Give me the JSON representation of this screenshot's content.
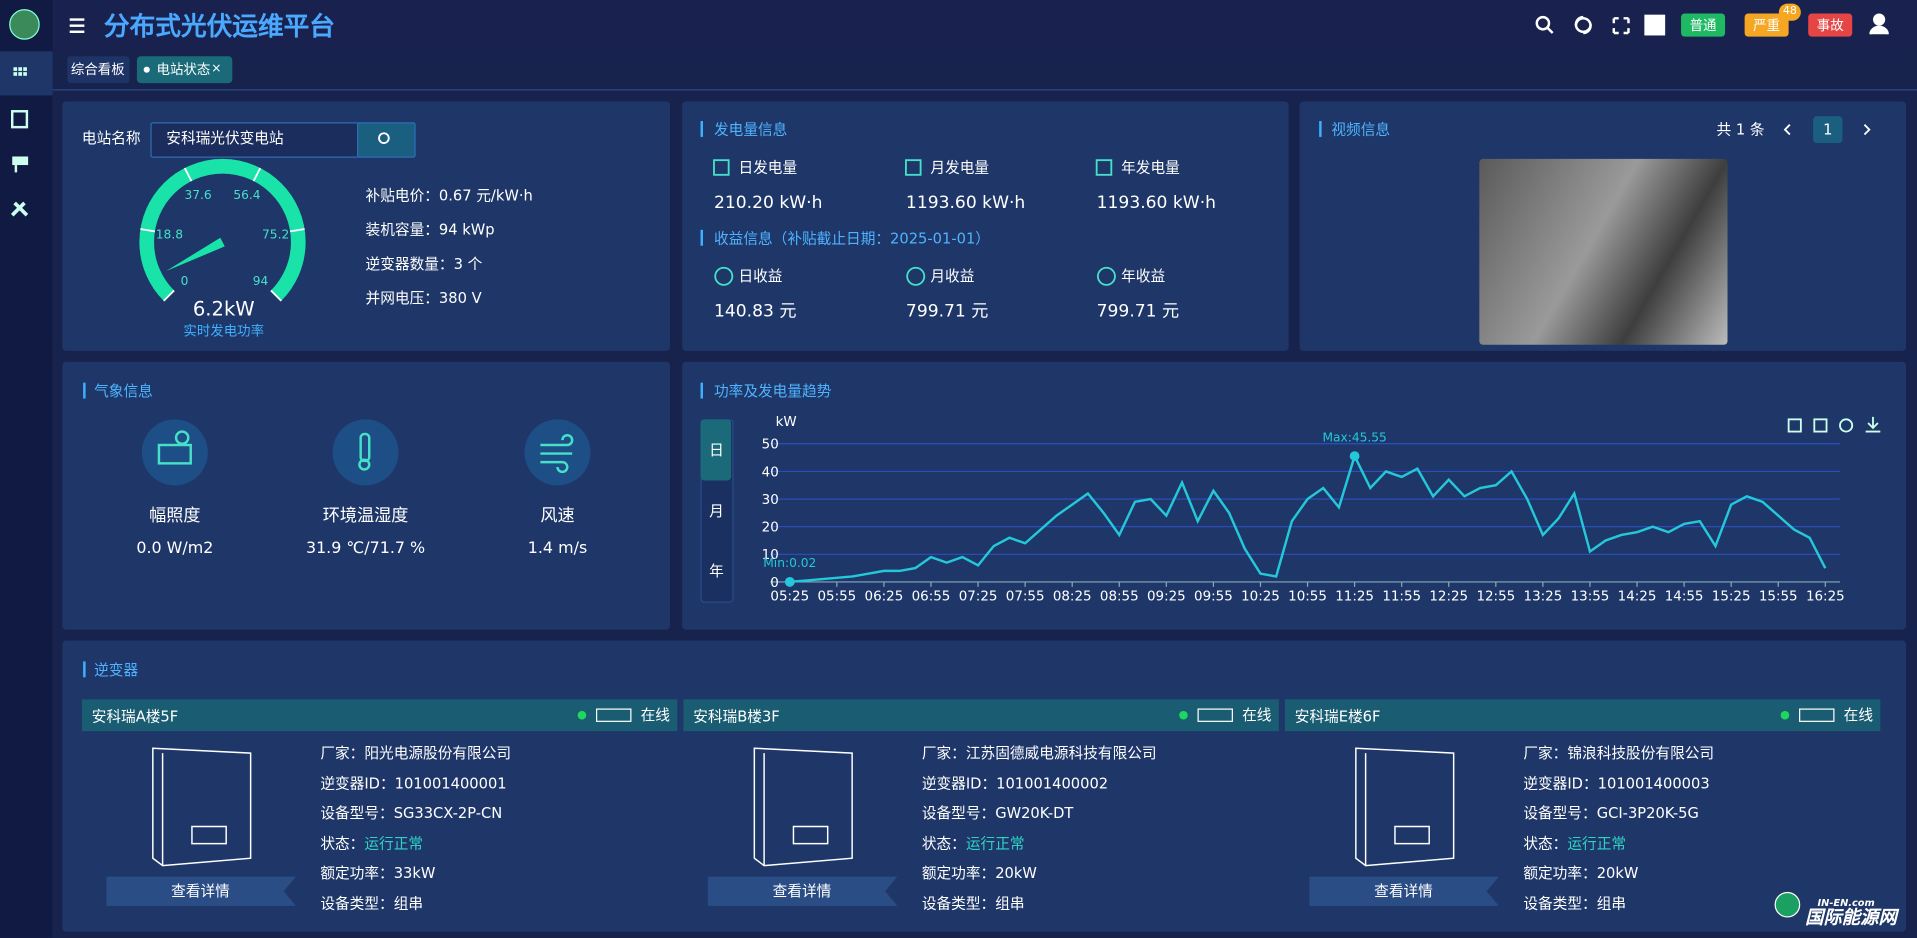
{
  "header": {
    "title": "分布式光伏运维平台",
    "alarms": [
      {
        "label": "普通"
      },
      {
        "label": "严重",
        "badge": 48
      },
      {
        "label": "事故"
      }
    ]
  },
  "tabs": {
    "items": [
      "综合看板",
      "电站状态"
    ],
    "close": "×"
  },
  "station": {
    "name_label": "电站名称",
    "name_value": "安科瑞光伏变电站",
    "info": [
      [
        "补贴电价：",
        "0.67 元/kW·h"
      ],
      [
        "装机容量：",
        "94 kWp"
      ],
      [
        "逆变器数量：",
        "3 个"
      ],
      [
        "并网电压：",
        "380 V"
      ]
    ]
  },
  "gauge": {
    "value": 6.2,
    "value_label": "6.2kW",
    "ticks": [
      0,
      18.8,
      37.6,
      56.4,
      75.2,
      94
    ],
    "label": "实时发电功率"
  },
  "generation": {
    "title": "发电量信息",
    "items": [
      {
        "label": "日发电量",
        "value": "210.20 kW·h"
      },
      {
        "label": "月发电量",
        "value": "1193.60 kW·h"
      },
      {
        "label": "年发电量",
        "value": "1193.60 kW·h"
      }
    ],
    "income_title": "收益信息（补贴截止日期：2025-01-01）",
    "income": [
      {
        "label": "日收益",
        "value": "140.83 元"
      },
      {
        "label": "月收益",
        "value": "799.71 元"
      },
      {
        "label": "年收益",
        "value": "799.71 元"
      }
    ]
  },
  "video": {
    "title": "视频信息",
    "count": "共 1 条",
    "page": 1
  },
  "weather": {
    "title": "气象信息",
    "items": [
      {
        "label": "幅照度",
        "value": "0.0 W/m2"
      },
      {
        "label": "环境温湿度",
        "value": "31.9 ℃/71.7 %"
      },
      {
        "label": "风速",
        "value": "1.4 m/s"
      }
    ]
  },
  "chart_data": {
    "type": "line",
    "title": "功率及发电量趋势",
    "periods": [
      "日",
      "月",
      "年"
    ],
    "y_label": "kW",
    "color": "#24c8d8",
    "ylim": [
      0,
      50
    ],
    "yticks": [
      0,
      10,
      20,
      30,
      40,
      50
    ],
    "categories": [
      "05:25",
      null,
      null,
      "05:55",
      null,
      null,
      "06:25",
      null,
      null,
      "06:55",
      null,
      null,
      "07:25",
      null,
      null,
      "07:55",
      null,
      null,
      "08:25",
      null,
      null,
      "08:55",
      null,
      null,
      "09:25",
      null,
      null,
      "09:55",
      null,
      null,
      "10:25",
      null,
      null,
      "10:55",
      null,
      null,
      "11:25",
      null,
      null,
      "11:55",
      null,
      null,
      "12:25",
      null,
      null,
      "12:55",
      null,
      null,
      "13:25",
      null,
      null,
      "13:55",
      null,
      null,
      "14:25",
      null,
      null,
      "14:55",
      null,
      null,
      "15:25",
      null,
      null,
      "15:55",
      null,
      null,
      "16:25"
    ],
    "values": [
      0.02,
      0.5,
      1,
      1.5,
      2,
      3,
      4,
      4,
      5,
      9,
      7,
      9,
      6,
      13,
      16,
      14,
      19,
      24,
      28,
      32,
      25,
      17,
      29,
      30,
      24,
      36,
      22,
      33,
      25,
      12,
      3,
      2,
      22,
      30,
      34,
      27,
      45.55,
      34,
      40,
      38,
      41,
      31,
      37,
      31,
      34,
      35,
      40,
      30,
      17,
      23,
      32,
      11,
      15,
      17,
      18,
      20,
      18,
      21,
      22,
      13,
      28,
      31,
      29,
      24,
      19,
      16,
      5
    ],
    "annotations": [
      "Max:45.55",
      "Min:0.02"
    ]
  },
  "inverters": {
    "title": "逆变器",
    "button": "查看详情",
    "items": [
      {
        "name": "安科瑞A楼5F",
        "status": "在线",
        "fields": [
          [
            "厂家：",
            "阳光电源股份有限公司"
          ],
          [
            "逆变器ID：",
            "101001400001"
          ],
          [
            "设备型号：",
            "SG33CX-2P-CN"
          ],
          [
            "状态：",
            "运行正常"
          ],
          [
            "额定功率：",
            "33kW"
          ],
          [
            "设备类型：",
            "组串"
          ]
        ]
      },
      {
        "name": "安科瑞B楼3F",
        "status": "在线",
        "fields": [
          [
            "厂家：",
            "江苏固德威电源科技有限公司"
          ],
          [
            "逆变器ID：",
            "101001400002"
          ],
          [
            "设备型号：",
            "GW20K-DT"
          ],
          [
            "状态：",
            "运行正常"
          ],
          [
            "额定功率：",
            "20kW"
          ],
          [
            "设备类型：",
            "组串"
          ]
        ]
      },
      {
        "name": "安科瑞E楼6F",
        "status": "在线",
        "fields": [
          [
            "厂家：",
            "锦浪科技股份有限公司"
          ],
          [
            "逆变器ID：",
            "101001400003"
          ],
          [
            "设备型号：",
            "GCI-3P20K-5G"
          ],
          [
            "状态：",
            "运行正常"
          ],
          [
            "额定功率：",
            "20kW"
          ],
          [
            "设备类型：",
            "组串"
          ]
        ]
      }
    ]
  },
  "watermark": {
    "site": "IN-EN.com",
    "name": "国际能源网"
  }
}
